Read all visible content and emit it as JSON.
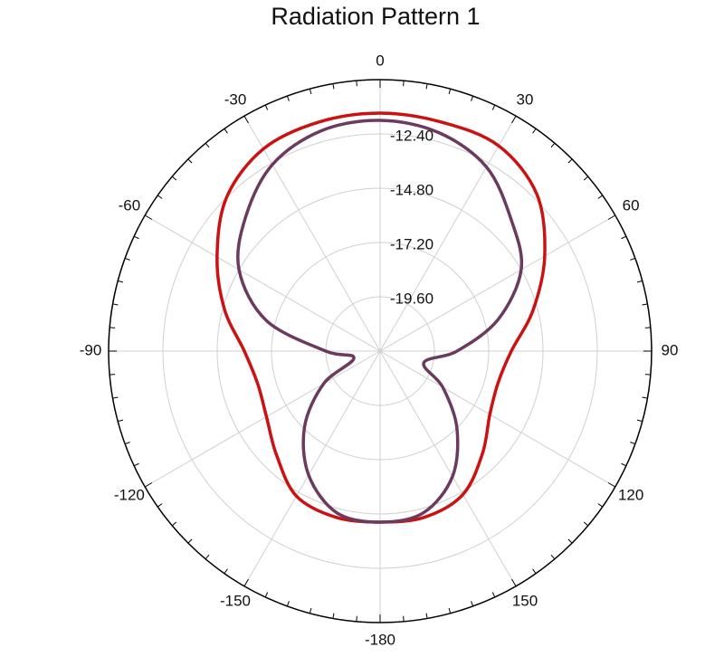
{
  "chart_data": {
    "type": "polar",
    "title": "Radiation Pattern 1",
    "x": [
      -180,
      -165,
      -150,
      -135,
      -120,
      -105,
      -90,
      -75,
      -60,
      -45,
      -30,
      -15,
      0,
      15,
      30,
      45,
      60,
      75,
      90,
      105,
      120,
      135,
      150,
      165
    ],
    "series": [
      {
        "color": "#cc1111",
        "values": [
          -14.44,
          -14.4,
          -14.6,
          -15.52,
          -16.2,
          -16.4,
          -16,
          -14.88,
          -13.68,
          -12.4,
          -11.68,
          -11.52,
          -11.48,
          -11.52,
          -11.52,
          -12.2,
          -13.6,
          -15,
          -16.2,
          -16.6,
          -16.4,
          -15.6,
          -14.68,
          -14.4
        ]
      },
      {
        "color": "#6b3a5e",
        "values": [
          -14.44,
          -14.6,
          -15.68,
          -17.28,
          -19.12,
          -20.8,
          -19.6,
          -16.8,
          -14.8,
          -13.6,
          -12.48,
          -11.92,
          -11.8,
          -12,
          -12.6,
          -13.8,
          -14.8,
          -16.6,
          -18.6,
          -20,
          -18.8,
          -17.2,
          -15.6,
          -14.6
        ]
      }
    ],
    "rlim": [
      -22,
      -10
    ],
    "rticks": [
      {
        "value": -19.6,
        "label": "-19.60"
      },
      {
        "value": -17.2,
        "label": "-17.20"
      },
      {
        "value": -14.8,
        "label": "-14.80"
      },
      {
        "value": -12.4,
        "label": "-12.40"
      }
    ],
    "xticks": [
      0,
      30,
      60,
      90,
      120,
      150,
      -180,
      -150,
      -120,
      -90,
      -60,
      -30
    ],
    "direction": "clockwise",
    "zero_location": "top",
    "grid": true
  }
}
